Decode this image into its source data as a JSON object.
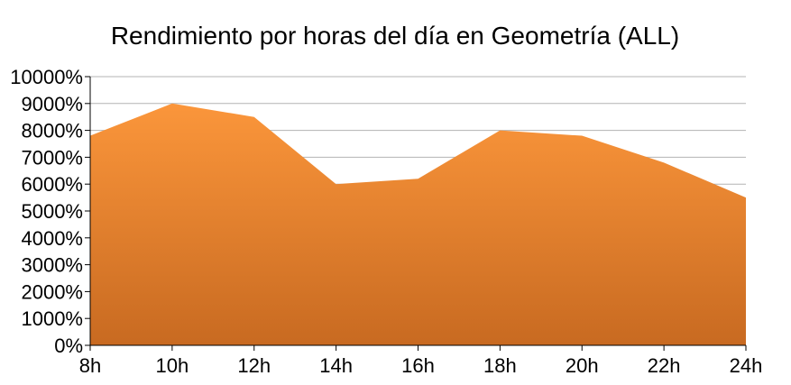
{
  "chart_data": {
    "type": "area",
    "title": "Rendimiento por horas del día en Geometría (ALL)",
    "xlabel": "",
    "ylabel": "",
    "categories": [
      "8h",
      "10h",
      "12h",
      "14h",
      "16h",
      "18h",
      "20h",
      "22h",
      "24h"
    ],
    "series": [
      {
        "values": [
          7800,
          9000,
          8500,
          6000,
          6200,
          8000,
          7800,
          6800,
          5500
        ]
      }
    ],
    "ylim": [
      0,
      10000
    ],
    "yticks": [
      0,
      1000,
      2000,
      3000,
      4000,
      5000,
      6000,
      7000,
      8000,
      9000,
      10000
    ],
    "y_tick_suffix": "%",
    "grid": true,
    "legend": "none",
    "colors": {
      "fill_top": "#fb963b",
      "fill_bottom": "#c86a21",
      "grid": "#b3b3b3",
      "axis": "#000000"
    }
  }
}
